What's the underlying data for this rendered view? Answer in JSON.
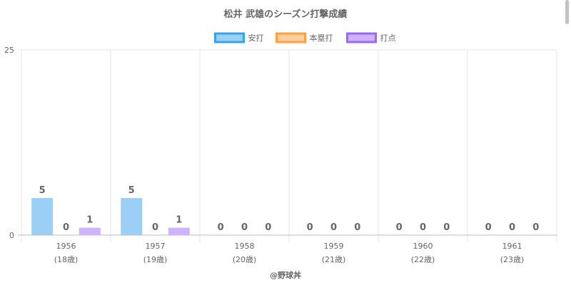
{
  "chart_data": {
    "type": "bar",
    "title": "松井 武雄のシーズン打撃成績",
    "categories": [
      "1956",
      "1957",
      "1958",
      "1959",
      "1960",
      "1961"
    ],
    "sublabels": [
      "(18歳)",
      "(19歳)",
      "(20歳)",
      "(21歳)",
      "(22歳)",
      "(23歳)"
    ],
    "series": [
      {
        "name": "安打",
        "values": [
          5,
          5,
          0,
          0,
          0,
          0
        ],
        "color": "#9ccff6",
        "border": "#36a2eb"
      },
      {
        "name": "本塁打",
        "values": [
          0,
          0,
          0,
          0,
          0,
          0
        ],
        "color": "#ffcf9f",
        "border": "#ff9f40"
      },
      {
        "name": "打点",
        "values": [
          1,
          1,
          0,
          0,
          0,
          0
        ],
        "color": "#cdb4fd",
        "border": "#9966ff"
      }
    ],
    "ylim": [
      0,
      25
    ],
    "yticks": [
      "0",
      "25"
    ],
    "grid": true,
    "legend_position": "top",
    "data_labels": true
  },
  "footer": {
    "credit": "@野球丼"
  }
}
